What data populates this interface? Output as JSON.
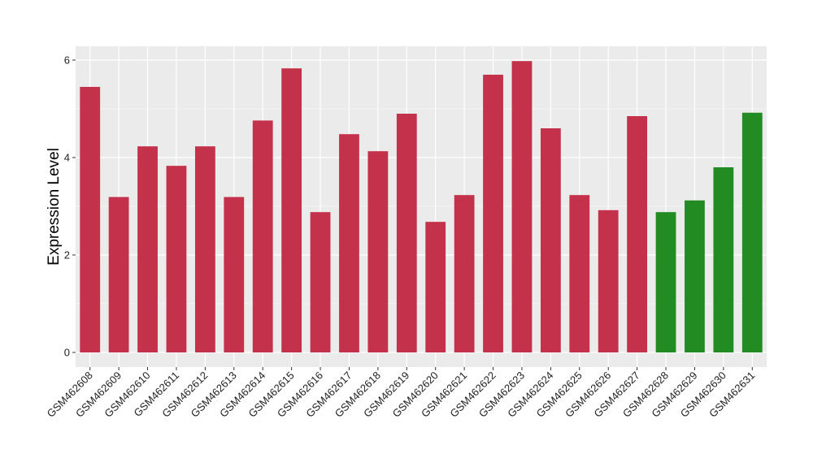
{
  "chart_data": {
    "type": "bar",
    "title": "",
    "xlabel": "",
    "ylabel": "Expression Level",
    "ylim": [
      0,
      6.3
    ],
    "yticks": [
      0,
      2,
      4,
      6
    ],
    "grid": true,
    "panel_background": "#ebebeb",
    "gridline_color": "#ffffff",
    "categories": [
      "GSM462608",
      "GSM462609",
      "GSM462610",
      "GSM462611",
      "GSM462612",
      "GSM462613",
      "GSM462614",
      "GSM462615",
      "GSM462616",
      "GSM462617",
      "GSM462618",
      "GSM462619",
      "GSM462620",
      "GSM462621",
      "GSM462622",
      "GSM462623",
      "GSM462624",
      "GSM462625",
      "GSM462626",
      "GSM462627",
      "GSM462628",
      "GSM462629",
      "GSM462630",
      "GSM462631"
    ],
    "values": [
      5.45,
      3.19,
      4.23,
      3.83,
      4.23,
      3.19,
      4.76,
      5.83,
      2.88,
      4.48,
      4.13,
      4.9,
      2.68,
      3.23,
      5.7,
      5.98,
      4.6,
      3.23,
      2.92,
      4.85,
      2.88,
      3.12,
      3.8,
      4.92
    ],
    "colors": [
      "#c4314b",
      "#c4314b",
      "#c4314b",
      "#c4314b",
      "#c4314b",
      "#c4314b",
      "#c4314b",
      "#c4314b",
      "#c4314b",
      "#c4314b",
      "#c4314b",
      "#c4314b",
      "#c4314b",
      "#c4314b",
      "#c4314b",
      "#c4314b",
      "#c4314b",
      "#c4314b",
      "#c4314b",
      "#c4314b",
      "#228b22",
      "#228b22",
      "#228b22",
      "#228b22"
    ]
  }
}
